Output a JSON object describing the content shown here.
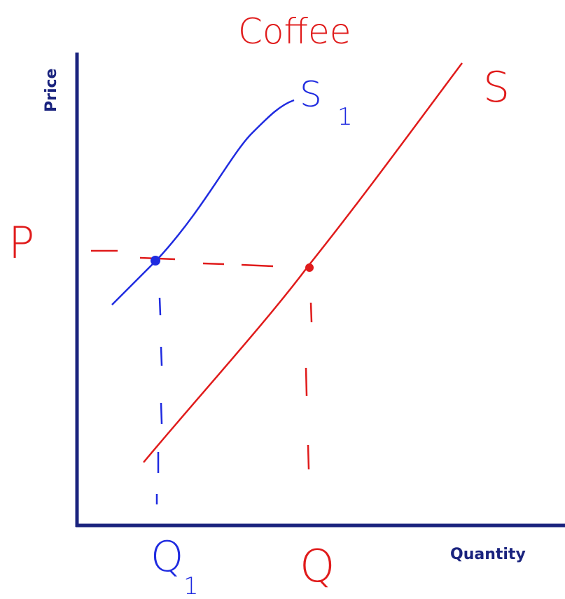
{
  "title": "Coffee",
  "axes": {
    "y": "Price",
    "x": "Quantity"
  },
  "labels": {
    "supply_original": "S",
    "supply_new": {
      "letter": "S",
      "subscript": "1"
    },
    "price": "P",
    "quantity_original": "Q",
    "quantity_new": {
      "letter": "Q",
      "subscript": "1"
    }
  }
}
